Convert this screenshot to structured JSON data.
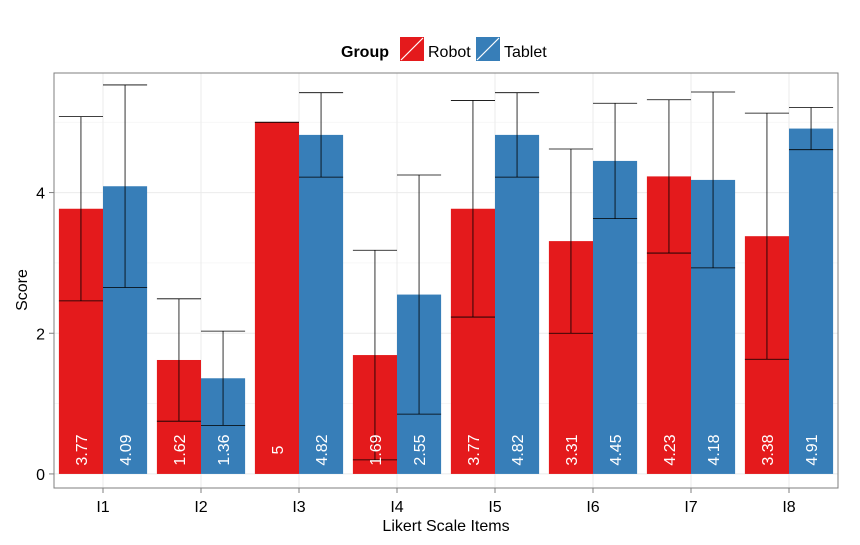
{
  "chart_data": {
    "type": "bar",
    "title": "",
    "xlabel": "Likert Scale Items",
    "ylabel": "Score",
    "ylim": [
      -0.2,
      5.7
    ],
    "yticks": [
      0,
      2,
      4
    ],
    "grid": true,
    "legend": {
      "title": "Group",
      "placement": "top"
    },
    "categories": [
      "I1",
      "I2",
      "I3",
      "I4",
      "I5",
      "I6",
      "I7",
      "I8"
    ],
    "series": [
      {
        "name": "Robot",
        "color": "#e41a1c",
        "values": [
          3.77,
          1.62,
          5,
          1.69,
          3.77,
          3.31,
          4.23,
          3.38
        ],
        "labels": [
          "3.77",
          "1.62",
          "5",
          "1.69",
          "3.77",
          "3.31",
          "4.23",
          "3.38"
        ],
        "err_low": [
          2.46,
          0.75,
          5.0,
          0.2,
          2.23,
          2.0,
          3.14,
          1.63
        ],
        "err_high": [
          5.08,
          2.49,
          5.0,
          3.18,
          5.31,
          4.62,
          5.32,
          5.13
        ]
      },
      {
        "name": "Tablet",
        "color": "#377eb8",
        "values": [
          4.09,
          1.36,
          4.82,
          2.55,
          4.82,
          4.45,
          4.18,
          4.91
        ],
        "labels": [
          "4.09",
          "1.36",
          "4.82",
          "2.55",
          "4.82",
          "4.45",
          "4.18",
          "4.91"
        ],
        "err_low": [
          2.65,
          0.69,
          4.22,
          0.85,
          4.22,
          3.63,
          2.93,
          4.61
        ],
        "err_high": [
          5.53,
          2.03,
          5.42,
          4.25,
          5.42,
          5.27,
          5.43,
          5.21
        ]
      }
    ]
  }
}
